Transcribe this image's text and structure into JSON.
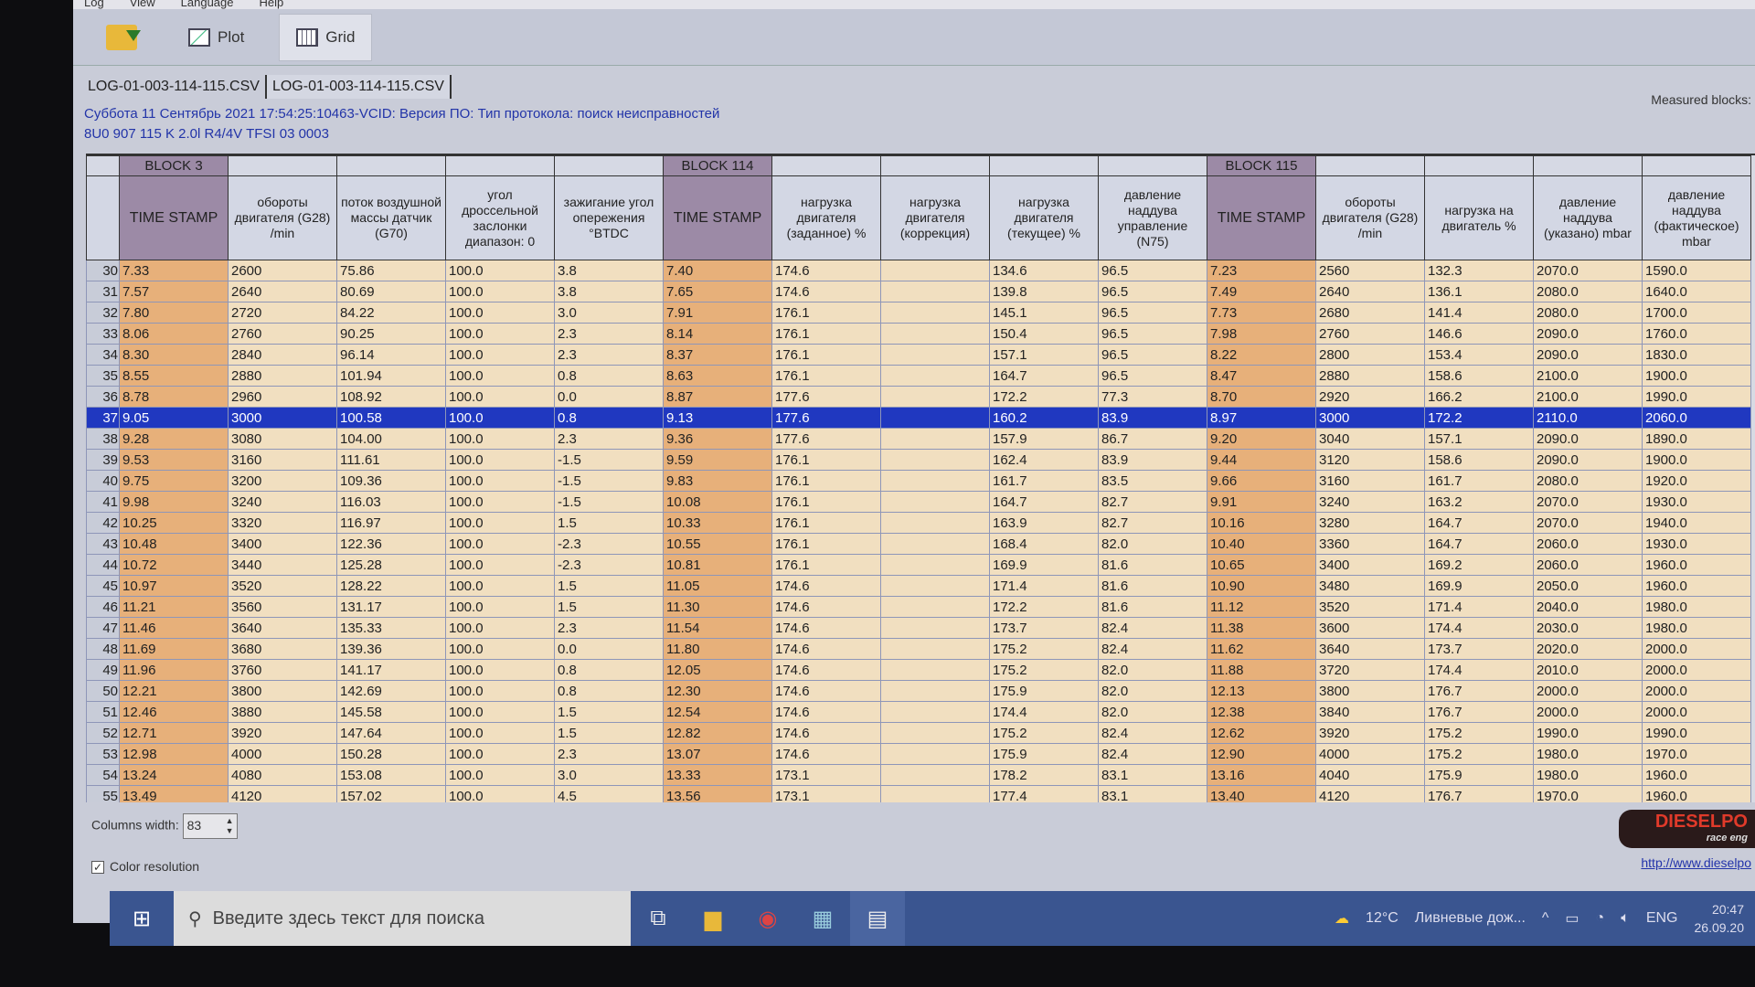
{
  "menu": [
    "Log",
    "View",
    "Language",
    "Help"
  ],
  "toolbar": {
    "plot": "Plot",
    "grid": "Grid"
  },
  "tabs": [
    "LOG-01-003-114-115.CSV",
    "LOG-01-003-114-115.CSV"
  ],
  "info": {
    "line1": "Суббота 11 Сентябрь 2021 17:54:25:10463-VCID: Версия ПО: Тип протокола: поиск неисправностей",
    "line2": "8U0 907 115 K  2.0l R4/4V TFSI  03 0003",
    "measured": "Measured blocks:"
  },
  "columns": [
    {
      "block": "BLOCK 3",
      "title": "TIME STAMP",
      "ts": true
    },
    {
      "block": "",
      "title": "обороты двигателя (G28) /min"
    },
    {
      "block": "",
      "title": "поток воздушной массы датчик (G70)"
    },
    {
      "block": "",
      "title": "угол дроссельной заслонки диапазон: 0"
    },
    {
      "block": "",
      "title": "зажигание угол опережения °BTDC"
    },
    {
      "block": "BLOCK 114",
      "title": "TIME STAMP",
      "ts": true
    },
    {
      "block": "",
      "title": "нагрузка двигателя (заданное) %"
    },
    {
      "block": "",
      "title": "нагрузка двигателя (коррекция)"
    },
    {
      "block": "",
      "title": "нагрузка двигателя (текущее) %"
    },
    {
      "block": "",
      "title": "давление наддува управление (N75)"
    },
    {
      "block": "BLOCK 115",
      "title": "TIME STAMP",
      "ts": true
    },
    {
      "block": "",
      "title": "обороты двигателя (G28) /min"
    },
    {
      "block": "",
      "title": "нагрузка на двигатель %"
    },
    {
      "block": "",
      "title": "давление наддува (указано) mbar"
    },
    {
      "block": "",
      "title": "давление наддува (фактическое) mbar"
    }
  ],
  "selected_row": "37",
  "rows": [
    [
      "30",
      "7.33",
      "2600",
      "75.86",
      "100.0",
      "3.8",
      "7.40",
      "174.6",
      "",
      "134.6",
      "96.5",
      "7.23",
      "2560",
      "132.3",
      "2070.0",
      "1590.0"
    ],
    [
      "31",
      "7.57",
      "2640",
      "80.69",
      "100.0",
      "3.8",
      "7.65",
      "174.6",
      "",
      "139.8",
      "96.5",
      "7.49",
      "2640",
      "136.1",
      "2080.0",
      "1640.0"
    ],
    [
      "32",
      "7.80",
      "2720",
      "84.22",
      "100.0",
      "3.0",
      "7.91",
      "176.1",
      "",
      "145.1",
      "96.5",
      "7.73",
      "2680",
      "141.4",
      "2080.0",
      "1700.0"
    ],
    [
      "33",
      "8.06",
      "2760",
      "90.25",
      "100.0",
      "2.3",
      "8.14",
      "176.1",
      "",
      "150.4",
      "96.5",
      "7.98",
      "2760",
      "146.6",
      "2090.0",
      "1760.0"
    ],
    [
      "34",
      "8.30",
      "2840",
      "96.14",
      "100.0",
      "2.3",
      "8.37",
      "176.1",
      "",
      "157.1",
      "96.5",
      "8.22",
      "2800",
      "153.4",
      "2090.0",
      "1830.0"
    ],
    [
      "35",
      "8.55",
      "2880",
      "101.94",
      "100.0",
      "0.8",
      "8.63",
      "176.1",
      "",
      "164.7",
      "96.5",
      "8.47",
      "2880",
      "158.6",
      "2100.0",
      "1900.0"
    ],
    [
      "36",
      "8.78",
      "2960",
      "108.92",
      "100.0",
      "0.0",
      "8.87",
      "177.6",
      "",
      "172.2",
      "77.3",
      "8.70",
      "2920",
      "166.2",
      "2100.0",
      "1990.0"
    ],
    [
      "37",
      "9.05",
      "3000",
      "100.58",
      "100.0",
      "0.8",
      "9.13",
      "177.6",
      "",
      "160.2",
      "83.9",
      "8.97",
      "3000",
      "172.2",
      "2110.0",
      "2060.0"
    ],
    [
      "38",
      "9.28",
      "3080",
      "104.00",
      "100.0",
      "2.3",
      "9.36",
      "177.6",
      "",
      "157.9",
      "86.7",
      "9.20",
      "3040",
      "157.1",
      "2090.0",
      "1890.0"
    ],
    [
      "39",
      "9.53",
      "3160",
      "111.61",
      "100.0",
      "-1.5",
      "9.59",
      "176.1",
      "",
      "162.4",
      "83.9",
      "9.44",
      "3120",
      "158.6",
      "2090.0",
      "1900.0"
    ],
    [
      "40",
      "9.75",
      "3200",
      "109.36",
      "100.0",
      "-1.5",
      "9.83",
      "176.1",
      "",
      "161.7",
      "83.5",
      "9.66",
      "3160",
      "161.7",
      "2080.0",
      "1920.0"
    ],
    [
      "41",
      "9.98",
      "3240",
      "116.03",
      "100.0",
      "-1.5",
      "10.08",
      "176.1",
      "",
      "164.7",
      "82.7",
      "9.91",
      "3240",
      "163.2",
      "2070.0",
      "1930.0"
    ],
    [
      "42",
      "10.25",
      "3320",
      "116.97",
      "100.0",
      "1.5",
      "10.33",
      "176.1",
      "",
      "163.9",
      "82.7",
      "10.16",
      "3280",
      "164.7",
      "2070.0",
      "1940.0"
    ],
    [
      "43",
      "10.48",
      "3400",
      "122.36",
      "100.0",
      "-2.3",
      "10.55",
      "176.1",
      "",
      "168.4",
      "82.0",
      "10.40",
      "3360",
      "164.7",
      "2060.0",
      "1930.0"
    ],
    [
      "44",
      "10.72",
      "3440",
      "125.28",
      "100.0",
      "-2.3",
      "10.81",
      "176.1",
      "",
      "169.9",
      "81.6",
      "10.65",
      "3400",
      "169.2",
      "2060.0",
      "1960.0"
    ],
    [
      "45",
      "10.97",
      "3520",
      "128.22",
      "100.0",
      "1.5",
      "11.05",
      "174.6",
      "",
      "171.4",
      "81.6",
      "10.90",
      "3480",
      "169.9",
      "2050.0",
      "1960.0"
    ],
    [
      "46",
      "11.21",
      "3560",
      "131.17",
      "100.0",
      "1.5",
      "11.30",
      "174.6",
      "",
      "172.2",
      "81.6",
      "11.12",
      "3520",
      "171.4",
      "2040.0",
      "1980.0"
    ],
    [
      "47",
      "11.46",
      "3640",
      "135.33",
      "100.0",
      "2.3",
      "11.54",
      "174.6",
      "",
      "173.7",
      "82.4",
      "11.38",
      "3600",
      "174.4",
      "2030.0",
      "1980.0"
    ],
    [
      "48",
      "11.69",
      "3680",
      "139.36",
      "100.0",
      "0.0",
      "11.80",
      "174.6",
      "",
      "175.2",
      "82.4",
      "11.62",
      "3640",
      "173.7",
      "2020.0",
      "2000.0"
    ],
    [
      "49",
      "11.96",
      "3760",
      "141.17",
      "100.0",
      "0.8",
      "12.05",
      "174.6",
      "",
      "175.2",
      "82.0",
      "11.88",
      "3720",
      "174.4",
      "2010.0",
      "2000.0"
    ],
    [
      "50",
      "12.21",
      "3800",
      "142.69",
      "100.0",
      "0.8",
      "12.30",
      "174.6",
      "",
      "175.9",
      "82.0",
      "12.13",
      "3800",
      "176.7",
      "2000.0",
      "2000.0"
    ],
    [
      "51",
      "12.46",
      "3880",
      "145.58",
      "100.0",
      "1.5",
      "12.54",
      "174.6",
      "",
      "174.4",
      "82.0",
      "12.38",
      "3840",
      "176.7",
      "2000.0",
      "2000.0"
    ],
    [
      "52",
      "12.71",
      "3920",
      "147.64",
      "100.0",
      "1.5",
      "12.82",
      "174.6",
      "",
      "175.2",
      "82.4",
      "12.62",
      "3920",
      "175.2",
      "1990.0",
      "1990.0"
    ],
    [
      "53",
      "12.98",
      "4000",
      "150.28",
      "100.0",
      "2.3",
      "13.07",
      "174.6",
      "",
      "175.9",
      "82.4",
      "12.90",
      "4000",
      "175.2",
      "1980.0",
      "1970.0"
    ],
    [
      "54",
      "13.24",
      "4080",
      "153.08",
      "100.0",
      "3.0",
      "13.33",
      "173.1",
      "",
      "178.2",
      "83.1",
      "13.16",
      "4040",
      "175.9",
      "1980.0",
      "1960.0"
    ],
    [
      "55",
      "13.49",
      "4120",
      "157.02",
      "100.0",
      "4.5",
      "13.56",
      "173.1",
      "",
      "177.4",
      "83.1",
      "13.40",
      "4120",
      "176.7",
      "1970.0",
      "1960.0"
    ]
  ],
  "controls": {
    "columns_width_label": "Columns width:",
    "columns_width_value": "83",
    "color_resolution_label": "Color resolution",
    "color_resolution_checked": true
  },
  "brand": {
    "logo_text": "DIESELPO",
    "logo_sub": "race eng",
    "link": "http://www.dieselpo"
  },
  "taskbar": {
    "search_placeholder": "Введите здесь текст для поиска",
    "weather_temp": "12°C",
    "weather_text": "Ливневые дож...",
    "lang": "ENG",
    "time": "20:47",
    "date": "26.09.20"
  },
  "colors": {
    "timestamp_cell": "#e7b07a",
    "value_cell": "#f1dfc0",
    "block_header": "#9c8aa6",
    "selection": "#2038c0",
    "taskbar": "#3a5590"
  }
}
